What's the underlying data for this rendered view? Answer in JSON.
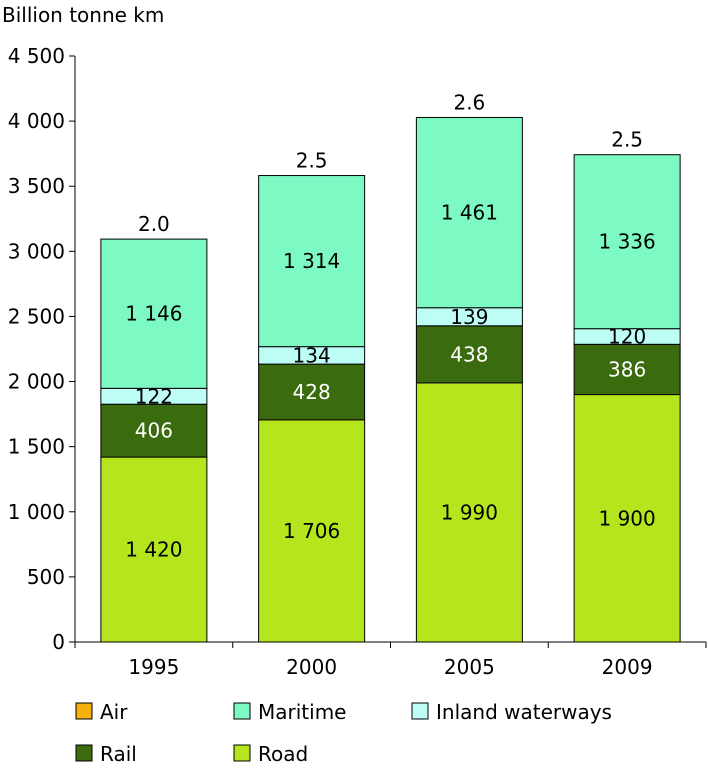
{
  "chart_data": {
    "type": "bar",
    "stacked": true,
    "ylabel": "Billion tonne km",
    "ylim": [
      0,
      4500
    ],
    "yticks": [
      0,
      500,
      1000,
      1500,
      2000,
      2500,
      3000,
      3500,
      4000,
      4500
    ],
    "ytick_labels": [
      "0",
      "500",
      "1 000",
      "1 500",
      "2 000",
      "2 500",
      "3 000",
      "3 500",
      "4 000",
      "4 500"
    ],
    "categories": [
      "1995",
      "2000",
      "2005",
      "2009"
    ],
    "series": [
      {
        "name": "Road",
        "color": "#b5e61d",
        "label_color": "#000000",
        "values": [
          1420,
          1706,
          1990,
          1900
        ],
        "labels": [
          "1 420",
          "1 706",
          "1 990",
          "1 900"
        ]
      },
      {
        "name": "Rail",
        "color": "#3a6b0e",
        "label_color": "#ffffff",
        "values": [
          406,
          428,
          438,
          386
        ],
        "labels": [
          "406",
          "428",
          "438",
          "386"
        ]
      },
      {
        "name": "Inland waterways",
        "color": "#bdfdf6",
        "label_color": "#000000",
        "values": [
          122,
          134,
          139,
          120
        ],
        "labels": [
          "122",
          "134",
          "139",
          "120"
        ]
      },
      {
        "name": "Maritime",
        "color": "#7dfac4",
        "label_color": "#000000",
        "values": [
          1146,
          1314,
          1461,
          1336
        ],
        "labels": [
          "1 146",
          "1 314",
          "1 461",
          "1 336"
        ]
      },
      {
        "name": "Air",
        "color": "#f5b10a",
        "label_color": "#000000",
        "values": [
          2.0,
          2.5,
          2.6,
          2.5
        ],
        "labels": [
          "2.0",
          "2.5",
          "2.6",
          "2.5"
        ]
      }
    ],
    "legend": {
      "placement": "bottom",
      "order": [
        "Air",
        "Maritime",
        "Inland waterways",
        "Rail",
        "Road"
      ]
    },
    "grid": false
  }
}
